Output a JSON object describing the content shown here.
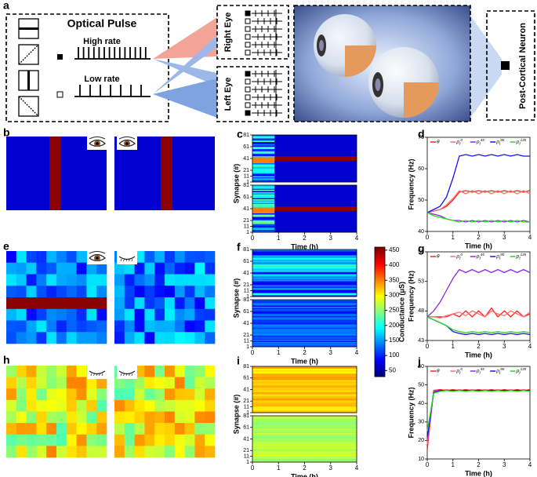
{
  "panel_labels": [
    "a",
    "b",
    "c",
    "d",
    "e",
    "f",
    "g",
    "h",
    "i",
    "j"
  ],
  "diagram": {
    "title": "Optical Pulse",
    "high_rate": "High rate",
    "low_rate": "Low rate",
    "right_eye": "Right Eye",
    "left_eye": "Left Eye",
    "neuron": "Post-Cortical Neuron"
  },
  "colorbar": {
    "label": "Conductance (μS)",
    "lim": [
      30,
      460
    ],
    "ticks": [
      50,
      100,
      150,
      200,
      250,
      300,
      350,
      400,
      450
    ]
  },
  "chart_data": [
    {
      "type": "heatmap",
      "ylabel": "Synapse (#)",
      "xlabel": "Time (h)",
      "xlim": [
        0,
        4
      ],
      "xticks": [
        0,
        1,
        2,
        3,
        4
      ],
      "ylim": [
        1,
        81
      ],
      "yticks": [
        1,
        11,
        21,
        41,
        61,
        81
      ]
    },
    {
      "type": "heatmap",
      "ylabel": "Synapse (#)",
      "xlabel": "Time (h)",
      "xlim": [
        0,
        4
      ],
      "xticks": [
        0,
        1,
        2,
        3,
        4
      ],
      "ylim": [
        1,
        81
      ],
      "yticks": [
        1,
        11,
        21,
        41,
        61,
        81
      ]
    },
    {
      "type": "heatmap",
      "ylabel": "Synapse (#)",
      "xlabel": "Time (h)",
      "xlim": [
        0,
        4
      ],
      "xticks": [
        0,
        1,
        2,
        3,
        4
      ],
      "ylim": [
        1,
        81
      ],
      "yticks": [
        1,
        11,
        21,
        41,
        61,
        81
      ]
    },
    {
      "type": "line",
      "ylabel": "Frequency (Hz)",
      "xlabel": "Time (h)",
      "xlim": [
        0,
        4
      ],
      "xticks": [
        0,
        1,
        2,
        3,
        4
      ],
      "ylim": [
        40,
        70
      ],
      "yticks": [
        40,
        50,
        60,
        70
      ],
      "x": [
        0,
        0.25,
        0.5,
        0.75,
        1,
        1.25,
        1.5,
        1.75,
        2,
        2.25,
        2.5,
        2.75,
        3,
        3.25,
        3.5,
        3.75,
        4
      ],
      "series": [
        {
          "name": "θ",
          "color": "#ff2020",
          "values": [
            46,
            46.5,
            47,
            48,
            50,
            52.5,
            53,
            52.5,
            53,
            52.5,
            53,
            52.5,
            53,
            52.5,
            53,
            52.5,
            53
          ]
        },
        {
          "name": "ρf0",
          "color": "#ff7070",
          "values": [
            46,
            46.5,
            47,
            48.5,
            50.5,
            53,
            52,
            53,
            52,
            53,
            52,
            53,
            52,
            53,
            52,
            53,
            52
          ]
        },
        {
          "name": "ρf45",
          "color": "#8a2be2",
          "values": [
            46,
            45.5,
            45,
            44,
            43.5,
            43.5,
            43,
            43.5,
            43,
            43.5,
            43,
            43.5,
            43,
            43.5,
            43,
            43.5,
            43
          ]
        },
        {
          "name": "ρf90",
          "color": "#1010ff",
          "values": [
            46,
            47,
            48,
            51,
            57,
            64,
            64.5,
            64,
            64.5,
            64,
            64.5,
            64,
            64.5,
            64,
            64.5,
            64,
            64
          ]
        },
        {
          "name": "ρf135",
          "color": "#20dd20",
          "values": [
            46,
            45,
            44.5,
            44,
            43.5,
            43,
            43.5,
            43,
            43.5,
            43,
            43.5,
            43,
            43.5,
            43,
            43.5,
            43,
            43
          ]
        }
      ]
    },
    {
      "type": "line",
      "ylabel": "Frequency (Hz)",
      "xlabel": "Time (h)",
      "xlim": [
        0,
        4
      ],
      "xticks": [
        0,
        1,
        2,
        3,
        4
      ],
      "ylim": [
        43,
        58
      ],
      "yticks": [
        43,
        48,
        53,
        58
      ],
      "x": [
        0,
        0.25,
        0.5,
        0.75,
        1,
        1.25,
        1.5,
        1.75,
        2,
        2.25,
        2.5,
        2.75,
        3,
        3.25,
        3.5,
        3.75,
        4
      ],
      "series": [
        {
          "name": "θ",
          "color": "#ff2020",
          "values": [
            47,
            47,
            47,
            47,
            47.5,
            47,
            48,
            47,
            48,
            47,
            48.5,
            47,
            48,
            47,
            48,
            47,
            47.5
          ]
        },
        {
          "name": "ρf0",
          "color": "#ff7070",
          "values": [
            47,
            47,
            46.8,
            47.2,
            47.5,
            47.8,
            47.2,
            48,
            47.5,
            47,
            48,
            47.5,
            47.2,
            48,
            47.5,
            47,
            47.8
          ]
        },
        {
          "name": "ρf45",
          "color": "#8a2be2",
          "values": [
            47,
            48,
            49.5,
            51.5,
            53.5,
            55,
            54.5,
            55,
            54.5,
            55,
            54.5,
            55,
            54.5,
            55,
            54.5,
            55,
            54.5
          ]
        },
        {
          "name": "ρf90",
          "color": "#1010ff",
          "values": [
            47,
            46.5,
            46,
            45.5,
            44.5,
            44.2,
            44,
            44.2,
            44,
            44.2,
            44,
            44.2,
            44,
            44.2,
            44,
            44.2,
            44
          ]
        },
        {
          "name": "ρf135",
          "color": "#20dd20",
          "values": [
            47,
            46.5,
            46,
            45.5,
            44.8,
            44.5,
            44.3,
            44.5,
            44.3,
            44.5,
            44.3,
            44.5,
            44.3,
            44.5,
            44.3,
            44.5,
            44.3
          ]
        }
      ]
    },
    {
      "type": "line",
      "ylabel": "Frequency (Hz)",
      "xlabel": "Time (h)",
      "xlim": [
        0,
        4
      ],
      "xticks": [
        0,
        1,
        2,
        3,
        4
      ],
      "ylim": [
        10,
        60
      ],
      "yticks": [
        10,
        20,
        30,
        40,
        50,
        60
      ],
      "x": [
        0,
        0.25,
        0.5,
        0.75,
        1,
        1.25,
        1.5,
        1.75,
        2,
        2.25,
        2.5,
        2.75,
        3,
        3.25,
        3.5,
        3.75,
        4
      ],
      "series": [
        {
          "name": "θ",
          "color": "#ff2020",
          "values": [
            15,
            47,
            47.5,
            47,
            47.5,
            47,
            47.5,
            47,
            47.5,
            47,
            47.5,
            47,
            47.5,
            47,
            47.5,
            47,
            47.5
          ]
        },
        {
          "name": "ρf0",
          "color": "#ff7070",
          "values": [
            18,
            46.5,
            47,
            47.5,
            47,
            47.5,
            47,
            47.5,
            47,
            47.5,
            47,
            47.5,
            47,
            47.5,
            47,
            47.5,
            47
          ]
        },
        {
          "name": "ρf45",
          "color": "#8a2be2",
          "values": [
            20,
            46,
            47,
            47,
            47,
            47,
            47,
            47,
            47,
            47,
            47,
            47,
            47,
            47,
            47,
            47,
            47
          ]
        },
        {
          "name": "ρf90",
          "color": "#1010ff",
          "values": [
            22,
            46,
            47,
            47,
            47,
            47,
            47,
            47,
            47,
            47,
            47,
            47,
            47,
            47,
            47,
            47,
            47
          ]
        },
        {
          "name": "ρf135",
          "color": "#20dd20",
          "values": [
            25,
            45.5,
            46.5,
            47,
            46.5,
            47,
            46.5,
            47,
            46.5,
            47,
            46.5,
            47,
            46.5,
            47,
            46.5,
            47,
            46.5
          ]
        }
      ]
    }
  ]
}
